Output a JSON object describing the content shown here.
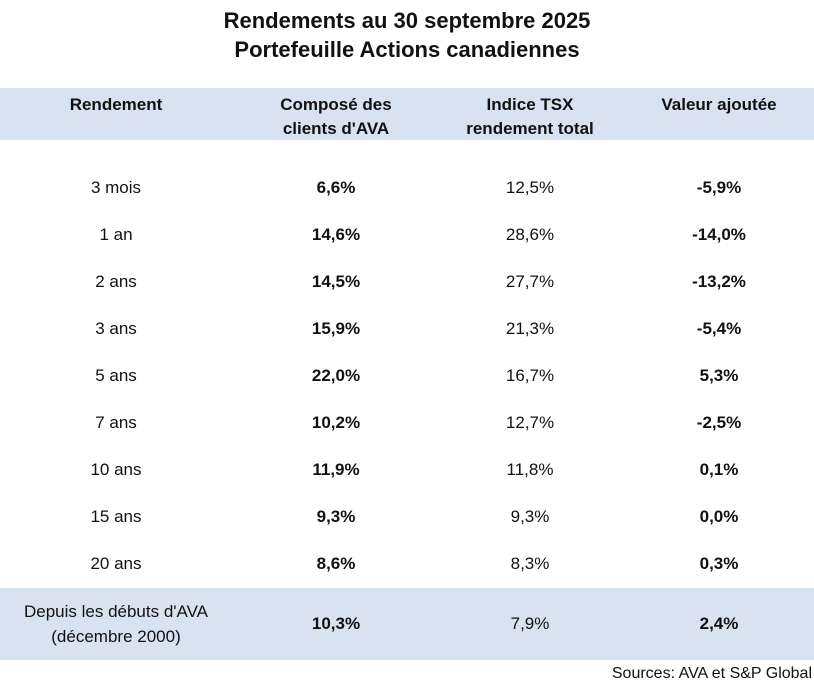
{
  "title": {
    "line1": "Rendements au 30 septembre 2025",
    "line2": "Portefeuille Actions canadiennes"
  },
  "columns": {
    "period": "Rendement",
    "client_line1": "Composé des",
    "client_line2": "clients d'AVA",
    "index_line1": "Indice TSX",
    "index_line2": "rendement total",
    "value_added": "Valeur ajoutée"
  },
  "rows": [
    {
      "period": "3 mois",
      "client": "6,6%",
      "index": "12,5%",
      "value_added": "-5,9%"
    },
    {
      "period": "1 an",
      "client": "14,6%",
      "index": "28,6%",
      "value_added": "-14,0%"
    },
    {
      "period": "2 ans",
      "client": "14,5%",
      "index": "27,7%",
      "value_added": "-13,2%"
    },
    {
      "period": "3 ans",
      "client": "15,9%",
      "index": "21,3%",
      "value_added": "-5,4%"
    },
    {
      "period": "5 ans",
      "client": "22,0%",
      "index": "16,7%",
      "value_added": "5,3%"
    },
    {
      "period": "7 ans",
      "client": "10,2%",
      "index": "12,7%",
      "value_added": "-2,5%"
    },
    {
      "period": "10 ans",
      "client": "11,9%",
      "index": "11,8%",
      "value_added": "0,1%"
    },
    {
      "period": "15 ans",
      "client": "9,3%",
      "index": "9,3%",
      "value_added": "0,0%"
    },
    {
      "period": "20 ans",
      "client": "8,6%",
      "index": "8,3%",
      "value_added": "0,3%"
    }
  ],
  "since_inception": {
    "label_line1": "Depuis les débuts d'AVA",
    "label_line2": "(décembre 2000)",
    "client": "10,3%",
    "index": "7,9%",
    "value_added": "2,4%"
  },
  "source": "Sources: AVA et S&P Global"
}
